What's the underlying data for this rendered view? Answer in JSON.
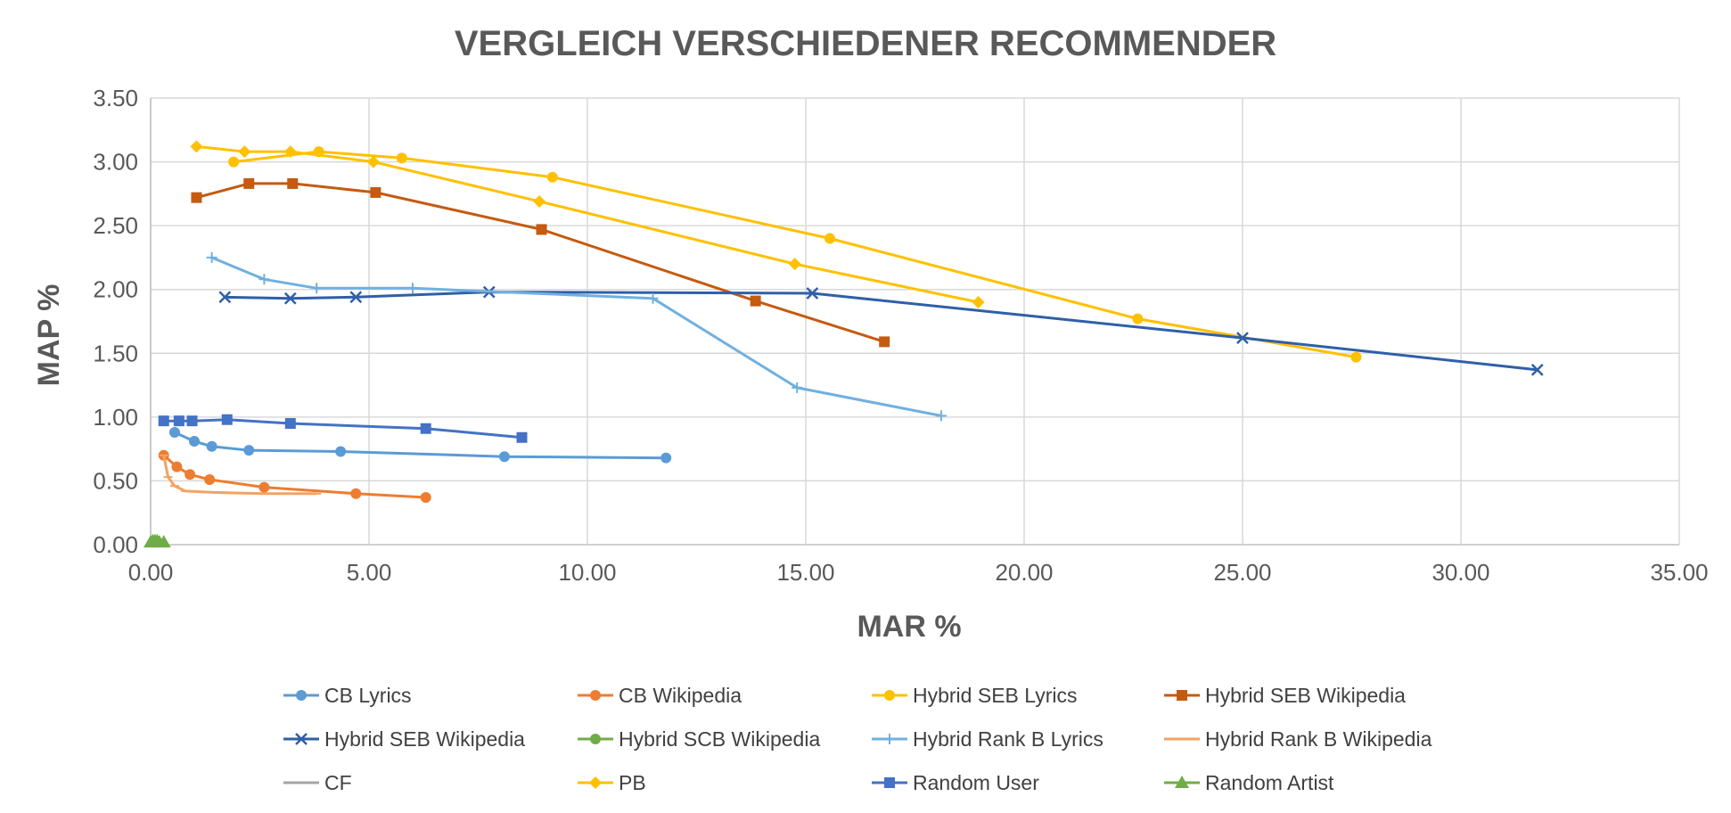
{
  "chart_data": {
    "type": "line",
    "title": "VERGLEICH VERSCHIEDENER RECOMMENDER",
    "xlabel": "MAR %",
    "ylabel": "MAP %",
    "xlim": [
      0,
      35
    ],
    "ylim": [
      0,
      3.5
    ],
    "x_ticks": [
      "0.00",
      "5.00",
      "10.00",
      "15.00",
      "20.00",
      "25.00",
      "30.00",
      "35.00"
    ],
    "y_ticks": [
      "0.00",
      "0.50",
      "1.00",
      "1.50",
      "2.00",
      "2.50",
      "3.00",
      "3.50"
    ],
    "grid": true,
    "legend_position": "bottom",
    "series": [
      {
        "name": "CB Lyrics",
        "color": "#5b9bd5",
        "marker": "circle",
        "points": [
          [
            0.55,
            0.88
          ],
          [
            1.0,
            0.81
          ],
          [
            1.4,
            0.77
          ],
          [
            2.25,
            0.74
          ],
          [
            4.35,
            0.73
          ],
          [
            8.1,
            0.69
          ],
          [
            11.8,
            0.68
          ]
        ]
      },
      {
        "name": "CB Wikipedia",
        "color": "#ed7d31",
        "marker": "circle",
        "points": [
          [
            0.3,
            0.7
          ],
          [
            0.6,
            0.61
          ],
          [
            0.9,
            0.55
          ],
          [
            1.35,
            0.51
          ],
          [
            2.6,
            0.45
          ],
          [
            4.7,
            0.4
          ],
          [
            6.3,
            0.37
          ]
        ]
      },
      {
        "name": "Hybrid SEB Lyrics",
        "color": "#ffc000",
        "marker": "circle",
        "points": [
          [
            1.9,
            3.0
          ],
          [
            3.85,
            3.08
          ],
          [
            5.75,
            3.03
          ],
          [
            9.2,
            2.88
          ],
          [
            15.55,
            2.4
          ],
          [
            22.6,
            1.77
          ],
          [
            27.6,
            1.47
          ]
        ]
      },
      {
        "name": "Hybrid SEB Wikipedia",
        "color": "#c55a11",
        "marker": "square",
        "points": [
          [
            1.05,
            2.72
          ],
          [
            2.25,
            2.83
          ],
          [
            3.25,
            2.83
          ],
          [
            5.15,
            2.76
          ],
          [
            8.95,
            2.47
          ],
          [
            13.85,
            1.91
          ],
          [
            16.8,
            1.59
          ]
        ]
      },
      {
        "name": "Hybrid SEB Wikipedia",
        "color": "#2f5fa8",
        "marker": "x",
        "points": [
          [
            1.7,
            1.94
          ],
          [
            3.2,
            1.93
          ],
          [
            4.7,
            1.94
          ],
          [
            7.75,
            1.98
          ],
          [
            15.15,
            1.97
          ],
          [
            25.0,
            1.62
          ],
          [
            31.75,
            1.37
          ]
        ]
      },
      {
        "name": "Hybrid SCB Wikipedia",
        "color": "#70ad47",
        "marker": "circle",
        "points": []
      },
      {
        "name": "Hybrid Rank B Lyrics",
        "color": "#70b0e0",
        "marker": "plus",
        "points": [
          [
            1.4,
            2.25
          ],
          [
            2.6,
            2.08
          ],
          [
            3.8,
            2.01
          ],
          [
            6.0,
            2.01
          ],
          [
            11.5,
            1.93
          ],
          [
            14.8,
            1.23
          ],
          [
            18.1,
            1.01
          ]
        ]
      },
      {
        "name": "Hybrid Rank B Wikipedia",
        "color": "#f4a261",
        "marker": "dash",
        "points": [
          [
            0.3,
            0.7
          ],
          [
            0.4,
            0.53
          ],
          [
            0.55,
            0.46
          ],
          [
            0.8,
            0.42
          ],
          [
            1.4,
            0.41
          ],
          [
            2.6,
            0.4
          ],
          [
            3.8,
            0.4
          ]
        ]
      },
      {
        "name": "CF",
        "color": "#a5a5a5",
        "marker": "none",
        "points": []
      },
      {
        "name": "PB",
        "color": "#ffc000",
        "marker": "diamond",
        "points": [
          [
            1.05,
            3.12
          ],
          [
            2.15,
            3.08
          ],
          [
            3.2,
            3.08
          ],
          [
            5.1,
            3.0
          ],
          [
            8.9,
            2.69
          ],
          [
            14.75,
            2.2
          ],
          [
            18.95,
            1.9
          ]
        ]
      },
      {
        "name": "Random User",
        "color": "#4472c4",
        "marker": "square",
        "points": [
          [
            0.3,
            0.97
          ],
          [
            0.65,
            0.97
          ],
          [
            0.95,
            0.97
          ],
          [
            1.75,
            0.98
          ],
          [
            3.2,
            0.95
          ],
          [
            6.3,
            0.91
          ],
          [
            8.5,
            0.84
          ]
        ]
      },
      {
        "name": "Random Artist",
        "color": "#70ad47",
        "marker": "triangle",
        "points": [
          [
            0.0,
            0.02
          ],
          [
            0.05,
            0.03
          ],
          [
            0.1,
            0.03
          ],
          [
            0.15,
            0.03
          ],
          [
            0.2,
            0.02
          ],
          [
            0.3,
            0.02
          ]
        ]
      }
    ]
  }
}
